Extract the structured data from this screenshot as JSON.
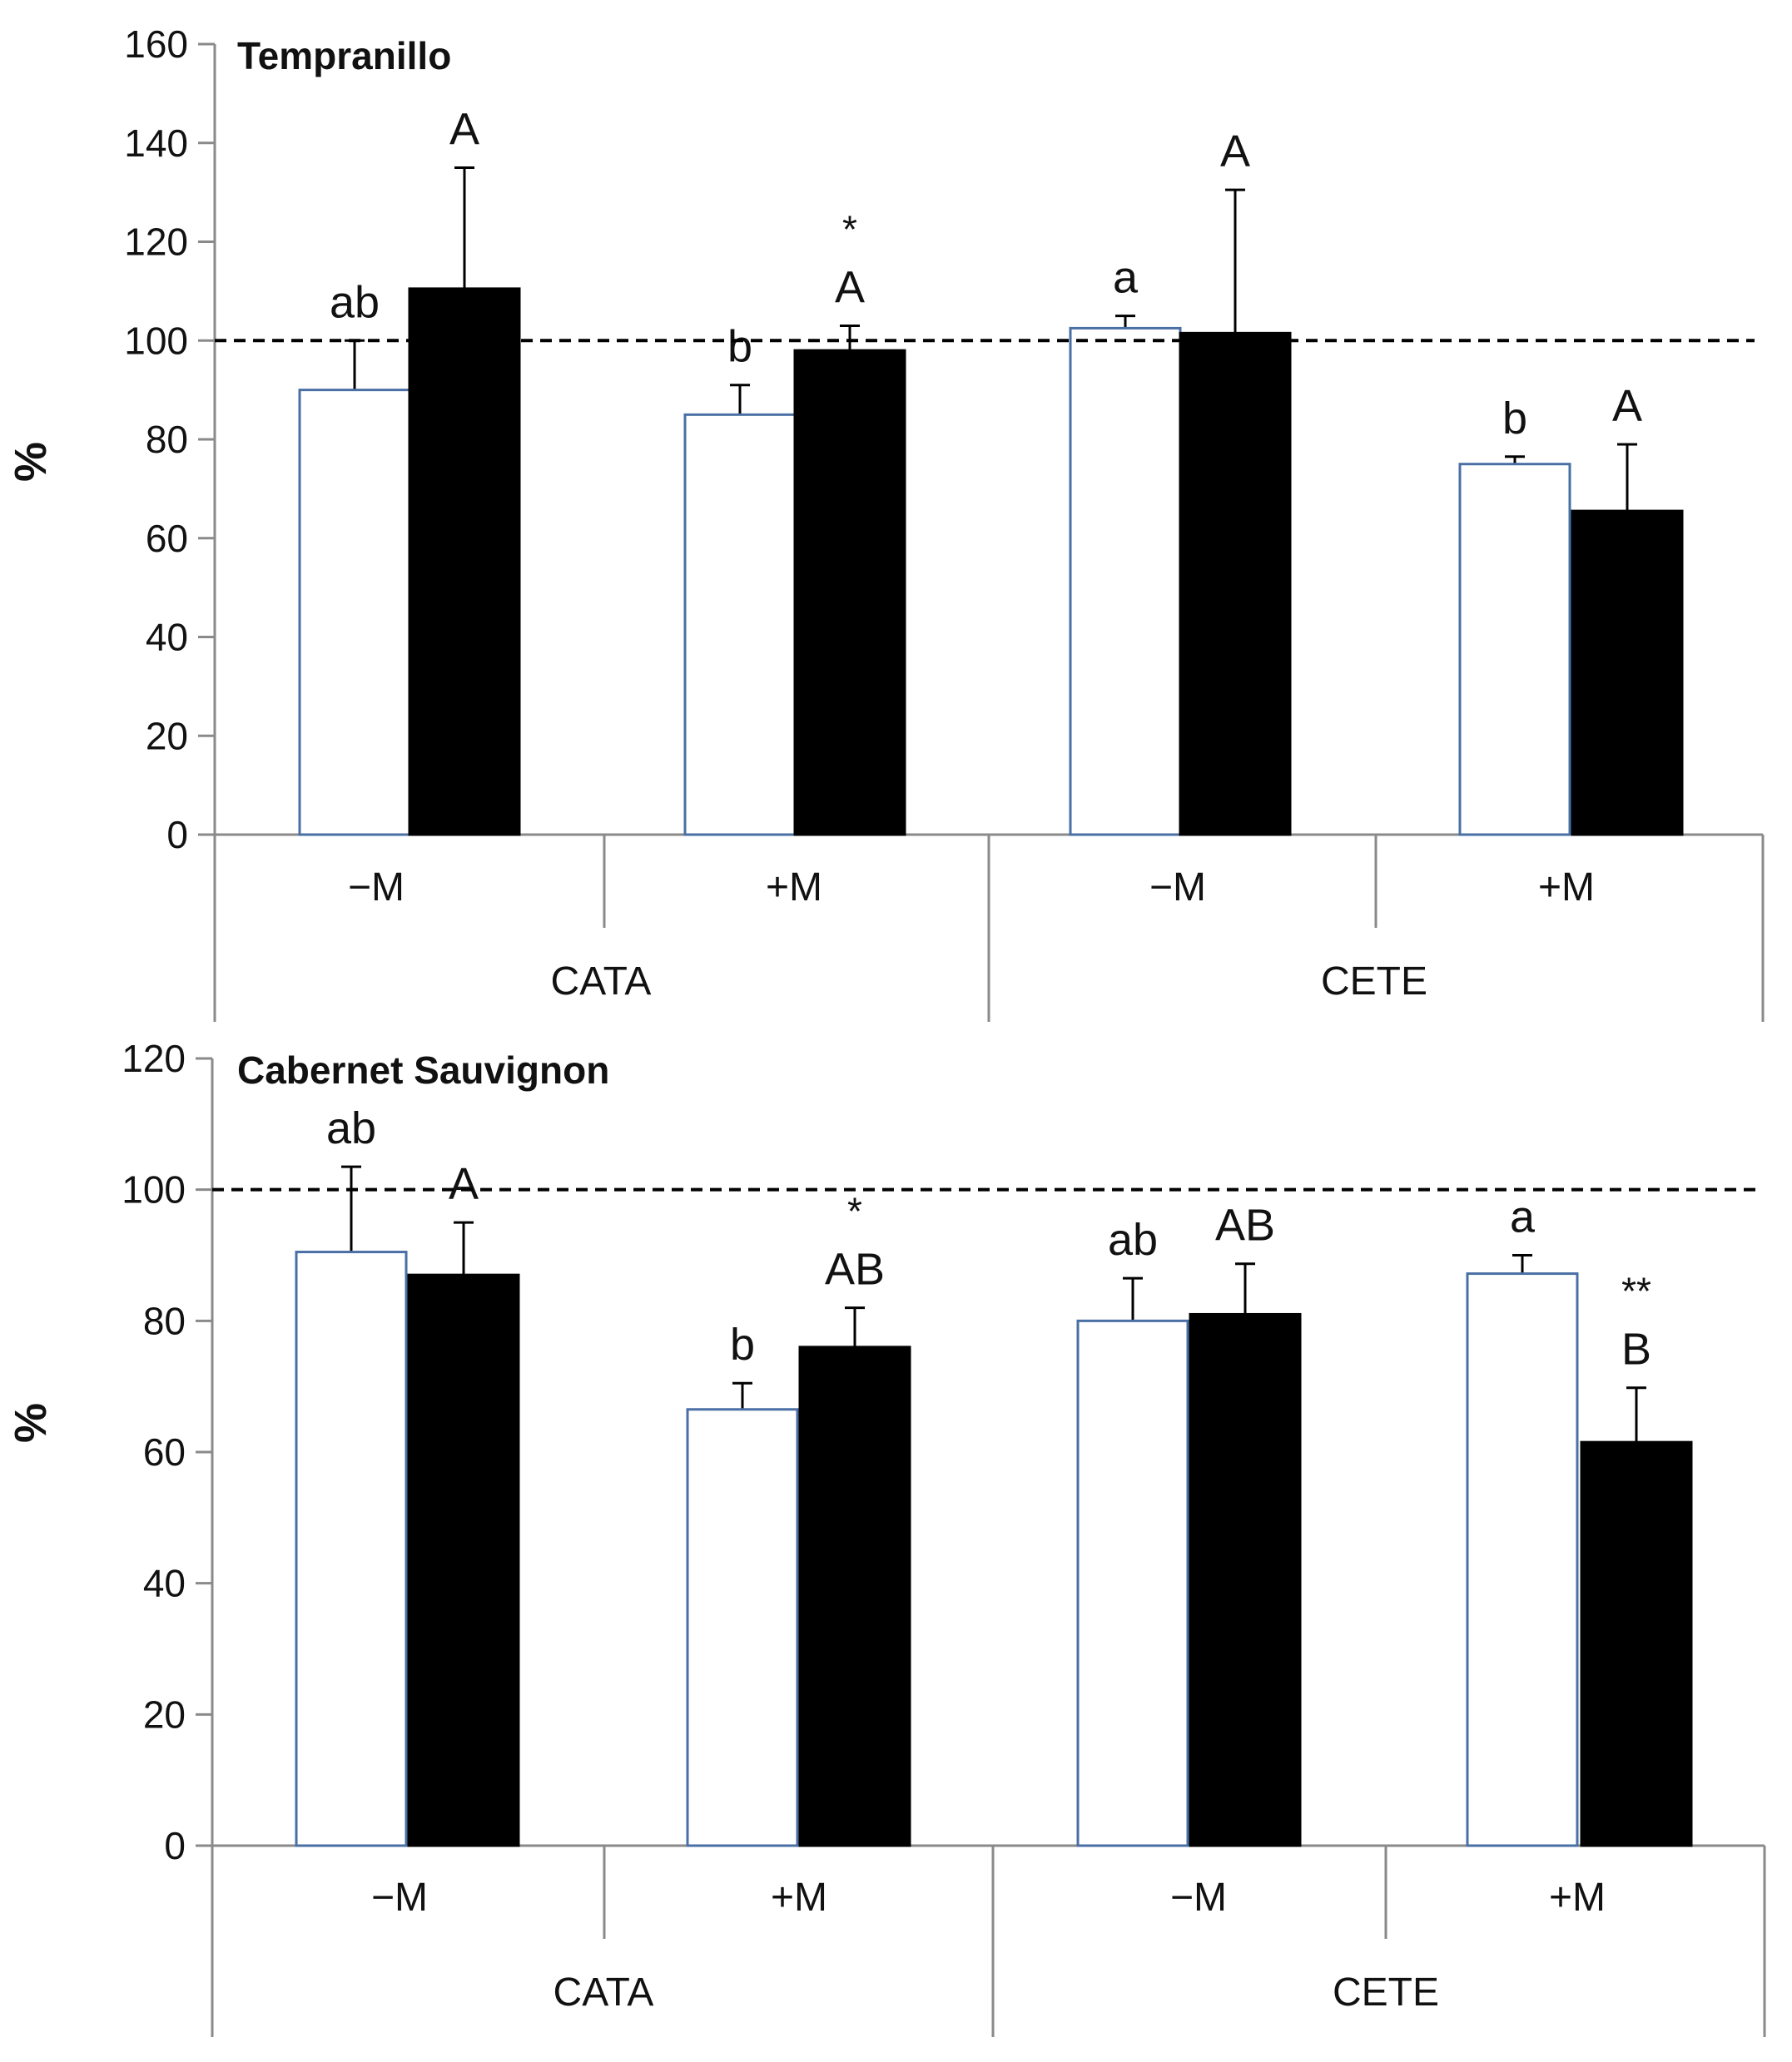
{
  "chart_data": [
    {
      "type": "bar",
      "title": "Tempranillo",
      "ylabel": "%",
      "ylim": [
        0,
        160
      ],
      "yticks": [
        0,
        20,
        40,
        60,
        80,
        100,
        120,
        140,
        160
      ],
      "reference_line": 100,
      "categories": [
        "−M",
        "+M",
        "−M",
        "+M"
      ],
      "groups": [
        {
          "label": "CATA",
          "span": [
            0,
            1
          ]
        },
        {
          "label": "CETE",
          "span": [
            2,
            3
          ]
        }
      ],
      "series": [
        {
          "name": "open bars",
          "fill": "#ffffff",
          "stroke": "#4a6fa5",
          "values": [
            90,
            85,
            102.5,
            75
          ],
          "errors": [
            10,
            6,
            2.5,
            1.5
          ],
          "letters": [
            "ab",
            "b",
            "a",
            "b"
          ],
          "stars": [
            "",
            "",
            "",
            ""
          ]
        },
        {
          "name": "filled bars",
          "fill": "#000000",
          "stroke": "#000000",
          "values": [
            110.5,
            98,
            101.5,
            65.5
          ],
          "errors": [
            24.5,
            5,
            29,
            13.5
          ],
          "letters": [
            "A",
            "A",
            "A",
            "A"
          ],
          "stars": [
            "",
            "*",
            "",
            ""
          ]
        }
      ]
    },
    {
      "type": "bar",
      "title": "Cabernet Sauvignon",
      "ylabel": "%",
      "ylim": [
        0,
        120
      ],
      "yticks": [
        0,
        20,
        40,
        60,
        80,
        100,
        120
      ],
      "reference_line": 100,
      "categories": [
        "−M",
        "+M",
        "−M",
        "+M"
      ],
      "groups": [
        {
          "label": "CATA",
          "span": [
            0,
            1
          ]
        },
        {
          "label": "CETE",
          "span": [
            2,
            3
          ]
        }
      ],
      "series": [
        {
          "name": "open bars",
          "fill": "#ffffff",
          "stroke": "#4a6fa5",
          "values": [
            90.5,
            66.5,
            80,
            87.2
          ],
          "errors": [
            13,
            4,
            6.5,
            2.8
          ],
          "letters": [
            "ab",
            "b",
            "ab",
            "a"
          ],
          "stars": [
            "",
            "",
            "",
            ""
          ]
        },
        {
          "name": "filled bars",
          "fill": "#000000",
          "stroke": "#000000",
          "values": [
            87,
            76,
            81,
            61.5
          ],
          "errors": [
            8,
            6,
            7.7,
            8.3
          ],
          "letters": [
            "A",
            "AB",
            "AB",
            "B"
          ],
          "stars": [
            "",
            "*",
            "",
            "**"
          ]
        }
      ]
    }
  ]
}
